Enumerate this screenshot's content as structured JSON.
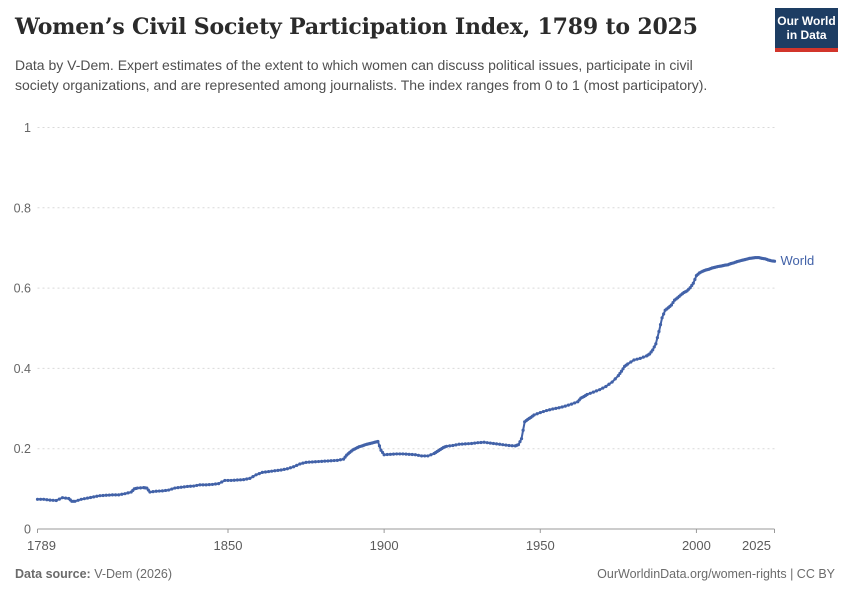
{
  "header": {
    "title": "Women’s Civil Society Participation Index, 1789 to 2025",
    "subtitle": "Data by V-Dem. Expert estimates of the extent to which women can discuss political issues, participate in civil society organizations, and are represented among journalists. The index ranges from 0 to 1 (most participatory).",
    "logo": {
      "line1": "Our World",
      "line2": "in Data",
      "bg_color": "#1d3d63",
      "accent_color": "#d2352b"
    }
  },
  "chart_data": {
    "type": "line",
    "title": "Women’s Civil Society Participation Index, 1789 to 2025",
    "xlabel": "",
    "ylabel": "",
    "xlim": [
      1789,
      2025
    ],
    "ylim": [
      0,
      1
    ],
    "xticks": [
      1789,
      1850,
      1900,
      1950,
      2000,
      2025
    ],
    "yticks": [
      0,
      0.2,
      0.4,
      0.6,
      0.8,
      1
    ],
    "grid": "horizontal-dashed",
    "legend": "line-end-label",
    "colors": {
      "line": "#4262a8",
      "gridline": "#d9d9d9",
      "axis": "#999999"
    },
    "series": [
      {
        "name": "World",
        "color": "#4262a8",
        "points": [
          [
            1789,
            0.074
          ],
          [
            1791,
            0.074
          ],
          [
            1793,
            0.072
          ],
          [
            1795,
            0.071
          ],
          [
            1797,
            0.078
          ],
          [
            1799,
            0.076
          ],
          [
            1800,
            0.069
          ],
          [
            1801,
            0.069
          ],
          [
            1803,
            0.074
          ],
          [
            1805,
            0.077
          ],
          [
            1807,
            0.08
          ],
          [
            1809,
            0.083
          ],
          [
            1811,
            0.084
          ],
          [
            1813,
            0.085
          ],
          [
            1815,
            0.085
          ],
          [
            1817,
            0.088
          ],
          [
            1819,
            0.092
          ],
          [
            1820,
            0.1
          ],
          [
            1821,
            0.102
          ],
          [
            1823,
            0.103
          ],
          [
            1824,
            0.102
          ],
          [
            1825,
            0.092
          ],
          [
            1827,
            0.094
          ],
          [
            1829,
            0.095
          ],
          [
            1831,
            0.097
          ],
          [
            1833,
            0.102
          ],
          [
            1835,
            0.104
          ],
          [
            1837,
            0.106
          ],
          [
            1839,
            0.107
          ],
          [
            1841,
            0.11
          ],
          [
            1843,
            0.11
          ],
          [
            1845,
            0.111
          ],
          [
            1847,
            0.113
          ],
          [
            1849,
            0.121
          ],
          [
            1851,
            0.121
          ],
          [
            1853,
            0.122
          ],
          [
            1855,
            0.123
          ],
          [
            1857,
            0.126
          ],
          [
            1859,
            0.135
          ],
          [
            1861,
            0.141
          ],
          [
            1863,
            0.143
          ],
          [
            1865,
            0.145
          ],
          [
            1867,
            0.147
          ],
          [
            1869,
            0.15
          ],
          [
            1871,
            0.155
          ],
          [
            1873,
            0.162
          ],
          [
            1875,
            0.166
          ],
          [
            1877,
            0.167
          ],
          [
            1879,
            0.168
          ],
          [
            1881,
            0.169
          ],
          [
            1883,
            0.17
          ],
          [
            1885,
            0.171
          ],
          [
            1887,
            0.174
          ],
          [
            1888,
            0.184
          ],
          [
            1889,
            0.191
          ],
          [
            1890,
            0.197
          ],
          [
            1891,
            0.201
          ],
          [
            1892,
            0.205
          ],
          [
            1893,
            0.207
          ],
          [
            1894,
            0.21
          ],
          [
            1895,
            0.212
          ],
          [
            1896,
            0.214
          ],
          [
            1897,
            0.216
          ],
          [
            1898,
            0.218
          ],
          [
            1899,
            0.196
          ],
          [
            1900,
            0.185
          ],
          [
            1902,
            0.186
          ],
          [
            1904,
            0.187
          ],
          [
            1906,
            0.187
          ],
          [
            1908,
            0.186
          ],
          [
            1910,
            0.185
          ],
          [
            1912,
            0.182
          ],
          [
            1914,
            0.182
          ],
          [
            1916,
            0.188
          ],
          [
            1917,
            0.193
          ],
          [
            1918,
            0.198
          ],
          [
            1919,
            0.203
          ],
          [
            1920,
            0.206
          ],
          [
            1922,
            0.208
          ],
          [
            1924,
            0.211
          ],
          [
            1926,
            0.212
          ],
          [
            1928,
            0.213
          ],
          [
            1930,
            0.215
          ],
          [
            1932,
            0.216
          ],
          [
            1934,
            0.214
          ],
          [
            1936,
            0.212
          ],
          [
            1938,
            0.21
          ],
          [
            1940,
            0.208
          ],
          [
            1942,
            0.207
          ],
          [
            1943,
            0.21
          ],
          [
            1944,
            0.225
          ],
          [
            1945,
            0.267
          ],
          [
            1946,
            0.273
          ],
          [
            1947,
            0.278
          ],
          [
            1948,
            0.284
          ],
          [
            1950,
            0.29
          ],
          [
            1952,
            0.295
          ],
          [
            1954,
            0.299
          ],
          [
            1956,
            0.302
          ],
          [
            1958,
            0.306
          ],
          [
            1960,
            0.311
          ],
          [
            1962,
            0.317
          ],
          [
            1963,
            0.326
          ],
          [
            1964,
            0.33
          ],
          [
            1965,
            0.335
          ],
          [
            1967,
            0.341
          ],
          [
            1969,
            0.347
          ],
          [
            1971,
            0.355
          ],
          [
            1973,
            0.366
          ],
          [
            1975,
            0.382
          ],
          [
            1976,
            0.393
          ],
          [
            1977,
            0.405
          ],
          [
            1978,
            0.411
          ],
          [
            1980,
            0.421
          ],
          [
            1982,
            0.425
          ],
          [
            1984,
            0.431
          ],
          [
            1985,
            0.436
          ],
          [
            1986,
            0.446
          ],
          [
            1987,
            0.461
          ],
          [
            1988,
            0.492
          ],
          [
            1989,
            0.526
          ],
          [
            1990,
            0.545
          ],
          [
            1991,
            0.551
          ],
          [
            1992,
            0.558
          ],
          [
            1993,
            0.57
          ],
          [
            1994,
            0.576
          ],
          [
            1995,
            0.583
          ],
          [
            1996,
            0.589
          ],
          [
            1997,
            0.593
          ],
          [
            1998,
            0.601
          ],
          [
            1999,
            0.612
          ],
          [
            2000,
            0.631
          ],
          [
            2001,
            0.638
          ],
          [
            2002,
            0.642
          ],
          [
            2003,
            0.645
          ],
          [
            2004,
            0.647
          ],
          [
            2005,
            0.65
          ],
          [
            2006,
            0.652
          ],
          [
            2007,
            0.654
          ],
          [
            2008,
            0.655
          ],
          [
            2009,
            0.657
          ],
          [
            2010,
            0.658
          ],
          [
            2011,
            0.661
          ],
          [
            2012,
            0.663
          ],
          [
            2013,
            0.666
          ],
          [
            2014,
            0.668
          ],
          [
            2015,
            0.67
          ],
          [
            2016,
            0.672
          ],
          [
            2017,
            0.674
          ],
          [
            2018,
            0.675
          ],
          [
            2019,
            0.676
          ],
          [
            2020,
            0.676
          ],
          [
            2021,
            0.674
          ],
          [
            2022,
            0.673
          ],
          [
            2023,
            0.67
          ],
          [
            2024,
            0.668
          ],
          [
            2025,
            0.667
          ]
        ]
      }
    ]
  },
  "footer": {
    "source_label": "Data source:",
    "source_value": " V-Dem (2026)",
    "credit": "OurWorldinData.org/women-rights | CC BY"
  }
}
